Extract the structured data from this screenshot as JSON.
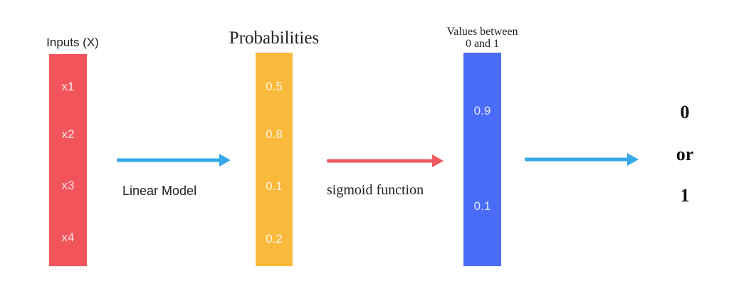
{
  "colors": {
    "inputs": "#f2545b",
    "probabilities": "#f9b93b",
    "values": "#4a6cf7",
    "arrow_blue": "#35a8e8",
    "arrow_red": "#ee5a5f"
  },
  "columns": {
    "inputs": {
      "title": "Inputs (X)",
      "cells": [
        "x1",
        "x2",
        "x3",
        "x4"
      ]
    },
    "probabilities": {
      "title": "Probabilities",
      "cells": [
        "0.5",
        "0.8",
        "0.1",
        "0.2"
      ]
    },
    "values": {
      "title_line1": "Values between",
      "title_line2": "0 and 1",
      "cells": [
        "0.9",
        "0.1"
      ]
    }
  },
  "edges": {
    "linear_model": "Linear Model",
    "sigmoid": "sigmoid function"
  },
  "output": {
    "zero": "0",
    "or": "or",
    "one": "1"
  }
}
